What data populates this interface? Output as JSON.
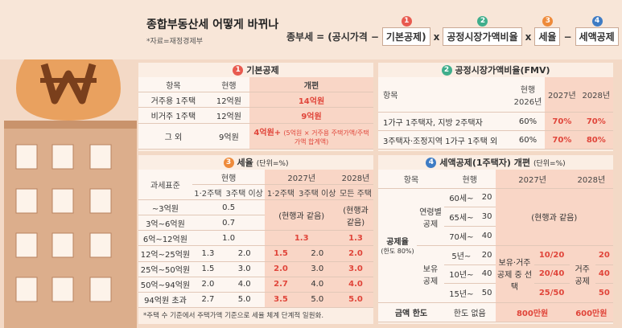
{
  "header": {
    "title": "종합부동산세 어떻게 바뀌나",
    "source": "*자료=재정경제부"
  },
  "formula": {
    "lhs": "종부세",
    "eq": "=",
    "open": "(공시가격",
    "minus1": "−",
    "term1": "기본공제)",
    "times1": "x",
    "term2": "공정시장가액비율",
    "times2": "x",
    "term3": "세율",
    "minus2": "−",
    "term4": "세액공제",
    "markers": [
      "1",
      "2",
      "3",
      "4"
    ]
  },
  "basic_deduction": {
    "marker": "1",
    "title": "기본공제",
    "headers": [
      "항목",
      "현행",
      "개편"
    ],
    "rows": [
      [
        "거주용 1주택",
        "12억원",
        "14억원"
      ],
      [
        "비거주 1주택",
        "12억원",
        "9억원"
      ],
      [
        "그 외",
        "9억원",
        "4억원+",
        "(5억원 × 거주용 주택가액/주택가액 합계액)"
      ]
    ]
  },
  "fmv": {
    "marker": "2",
    "title": "공정시장가액비율(FMV)",
    "headers": [
      "항목",
      "현행",
      "2026년",
      "2027년",
      "2028년"
    ],
    "rows": [
      [
        "1가구 1주택자, 지방 2주택자",
        "60%",
        "70%",
        "70%"
      ],
      [
        "3주택자·조정지역 1가구 1주택 외",
        "60%",
        "70%",
        "80%"
      ]
    ]
  },
  "tax_rate": {
    "marker": "3",
    "title": "세율",
    "unit": "(단위=%)",
    "headers": {
      "base": "과세표준",
      "current": "현행",
      "y2027": "2027년",
      "y2028": "2028년",
      "all_houses": "모든 주택",
      "sub": [
        "1·2주택",
        "3주택 이상",
        "1·2주택",
        "3주택 이상"
      ]
    },
    "same_2027": "(현행과 같음)",
    "same_2028": "(현행과 같음)",
    "rows": [
      [
        "~3억원",
        "0.5"
      ],
      [
        "3억~6억원",
        "0.7"
      ],
      [
        "6억~12억원",
        "1.0",
        "1.3",
        "1.3"
      ],
      [
        "12억~25억원",
        "1.3",
        "2.0",
        "1.5",
        "2.0",
        "2.0"
      ],
      [
        "25억~50억원",
        "1.5",
        "3.0",
        "2.0",
        "3.0",
        "3.0"
      ],
      [
        "50억~94억원",
        "2.0",
        "4.0",
        "2.7",
        "4.0",
        "4.0"
      ],
      [
        "94억원 초과",
        "2.7",
        "5.0",
        "3.5",
        "5.0",
        "5.0"
      ]
    ],
    "footnote": "*주택 수 기준에서 주택가액 기준으로 세율 체계 단계적 일원화."
  },
  "tax_credit": {
    "marker": "4",
    "title": "세액공제(1주택자) 개편",
    "unit": "(단위=%)",
    "headers": [
      "항목",
      "현행",
      "2027년",
      "2028년"
    ],
    "rate_label": "공제율",
    "rate_limit": "(한도 80%)",
    "age_label": "연령별 공제",
    "age_rows": [
      [
        "60세~",
        "20"
      ],
      [
        "65세~",
        "30"
      ],
      [
        "70세~",
        "40"
      ]
    ],
    "same": "(현행과 같음)",
    "holding_label": "보유 공제",
    "holding_rows": [
      [
        "5년~",
        "20",
        "10/20",
        "20"
      ],
      [
        "10년~",
        "40",
        "20/40",
        "40"
      ],
      [
        "15년~",
        "50",
        "25/50",
        "50"
      ]
    ],
    "choice_label": "보유·거주 공제 중 선택",
    "residence_label": "거주 공제",
    "limit_label": "금액 한도",
    "limit_row": [
      "한도 없음",
      "800만원",
      "600만원"
    ]
  }
}
